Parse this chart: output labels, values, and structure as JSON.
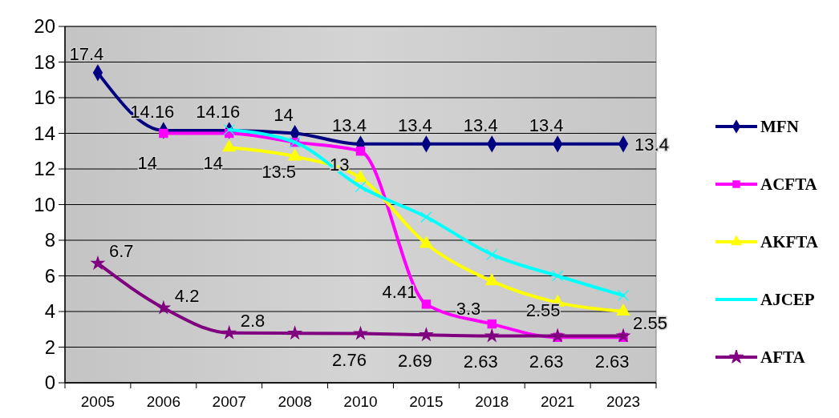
{
  "chart_data": {
    "type": "line",
    "categories": [
      "2005",
      "2006",
      "2007",
      "2008",
      "2010",
      "2015",
      "2018",
      "2021",
      "2023"
    ],
    "ylim": [
      0,
      20
    ],
    "yticks": [
      0,
      2,
      4,
      6,
      8,
      10,
      12,
      14,
      16,
      18,
      20
    ],
    "grid": "y",
    "legend": "right",
    "series": [
      {
        "name": "MFN",
        "color": "#000080",
        "marker": "diamond",
        "values": [
          17.4,
          14.16,
          14.16,
          14,
          13.4,
          13.4,
          13.4,
          13.4,
          13.4
        ],
        "value_labels": [
          "17.4",
          "14.16",
          "14.16",
          "14",
          "13.4",
          "13.4",
          "13.4",
          "13.4",
          "13.4"
        ]
      },
      {
        "name": "ACFTA",
        "color": "#ff00ff",
        "marker": "square",
        "values": [
          null,
          14,
          14,
          13.5,
          13,
          4.41,
          3.3,
          2.55,
          2.55
        ],
        "value_labels": [
          null,
          "14",
          "14",
          "13.5",
          "13",
          "4.41",
          "3.3",
          "2.55",
          "2.55"
        ]
      },
      {
        "name": "AKFTA",
        "color": "#ffff00",
        "marker": "triangle",
        "values": [
          null,
          null,
          13.2,
          12.7,
          11.5,
          7.8,
          5.7,
          4.5,
          4.0
        ]
      },
      {
        "name": "AJCEP",
        "color": "#00ffff",
        "marker": "cross",
        "values": [
          null,
          null,
          14.2,
          13.5,
          11.0,
          9.3,
          7.2,
          6.0,
          4.9
        ]
      },
      {
        "name": "AFTA",
        "color": "#800080",
        "marker": "star",
        "values": [
          6.7,
          4.2,
          2.8,
          2.78,
          2.76,
          2.69,
          2.63,
          2.63,
          2.63
        ],
        "value_labels": [
          "6.7",
          "4.2",
          "2.8",
          null,
          "2.76",
          "2.69",
          "2.63",
          "2.63",
          "2.63"
        ]
      }
    ]
  }
}
